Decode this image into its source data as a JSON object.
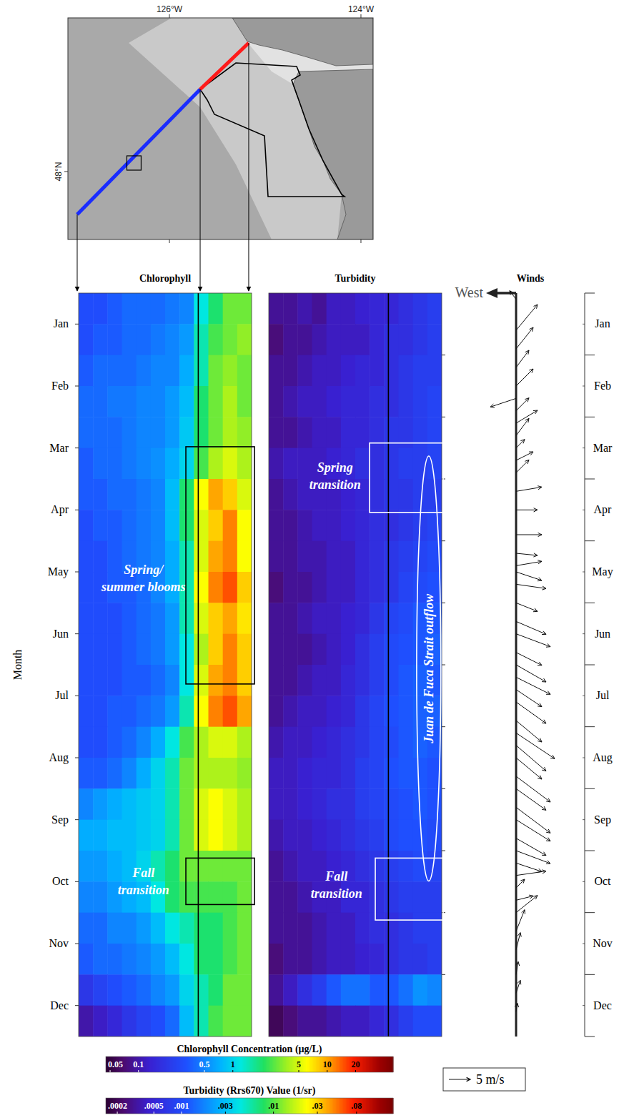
{
  "chart_data": [
    {
      "type": "map",
      "xlim": [
        -127.06,
        -123.873
      ],
      "ylim": [
        47.525,
        49.075
      ],
      "xticks": [
        {
          "value": -126,
          "label": "126°W"
        },
        {
          "value": -124,
          "label": "124°W"
        }
      ],
      "yticks": [
        {
          "value": 48,
          "label": "48°N"
        }
      ],
      "transect": [
        [
          -126.963,
          47.7
        ],
        [
          -125.679,
          48.575
        ],
        [
          -125.172,
          48.9
        ]
      ],
      "colors": [
        "#1a2cff",
        "#ff1a1a"
      ],
      "site_box": [
        -126.37,
        48.06
      ]
    },
    {
      "type": "heatmap",
      "title": "Chlorophyll",
      "ylabel": "Month",
      "log": true,
      "tick_labels": "y",
      "x": [
        0,
        1,
        2,
        3,
        4,
        5,
        6,
        7,
        8,
        9,
        10,
        11
      ],
      "y": [
        0.25,
        0.75,
        1.25,
        1.75,
        2.25,
        2.75,
        3.25,
        3.75,
        4.25,
        4.75,
        5.25,
        5.75,
        6.25,
        6.75,
        7.25,
        7.75,
        8.25,
        8.75,
        9.25,
        9.75,
        10.25,
        10.75,
        11.25,
        11.75
      ],
      "xlim": [
        -0.5,
        11.5
      ],
      "ylim": [
        0,
        12
      ],
      "yticks": [
        {
          "value": 0.5,
          "label": "Jan"
        },
        {
          "value": 1.5,
          "label": "Feb"
        },
        {
          "value": 2.5,
          "label": "Mar"
        },
        {
          "value": 3.5,
          "label": "Apr"
        },
        {
          "value": 4.5,
          "label": "May"
        },
        {
          "value": 5.5,
          "label": "Jun"
        },
        {
          "value": 6.5,
          "label": "Jul"
        },
        {
          "value": 7.5,
          "label": "Aug"
        },
        {
          "value": 8.5,
          "label": "Sep"
        },
        {
          "value": 9.5,
          "label": "Oct"
        },
        {
          "value": 10.5,
          "label": "Nov"
        },
        {
          "value": 11.5,
          "label": "Dec"
        }
      ],
      "reference_line_x": 7.8,
      "z": [
        [
          0.3,
          0.3,
          0.35,
          0.4,
          0.4,
          0.4,
          0.45,
          0.5,
          1.2,
          2,
          3,
          3
        ],
        [
          0.3,
          0.35,
          0.35,
          0.4,
          0.4,
          0.45,
          0.5,
          0.6,
          1.5,
          2.5,
          3,
          3.5
        ],
        [
          0.35,
          0.4,
          0.4,
          0.4,
          0.45,
          0.5,
          0.5,
          0.7,
          1.5,
          3,
          3.5,
          3
        ],
        [
          0.4,
          0.4,
          0.45,
          0.45,
          0.5,
          0.5,
          0.6,
          0.8,
          2,
          3,
          4,
          3
        ],
        [
          0.4,
          0.4,
          0.4,
          0.45,
          0.5,
          0.5,
          0.6,
          0.9,
          2,
          3,
          4,
          3.5
        ],
        [
          0.35,
          0.4,
          0.4,
          0.45,
          0.5,
          0.55,
          0.7,
          1,
          2.5,
          4,
          5,
          4
        ],
        [
          0.35,
          0.35,
          0.4,
          0.4,
          0.45,
          0.5,
          0.8,
          2,
          6,
          10,
          8,
          5
        ],
        [
          0.3,
          0.35,
          0.35,
          0.4,
          0.45,
          0.5,
          0.8,
          2,
          5,
          8,
          12,
          6
        ],
        [
          0.3,
          0.3,
          0.35,
          0.4,
          0.45,
          0.5,
          0.7,
          1.5,
          5,
          10,
          12,
          6
        ],
        [
          0.3,
          0.3,
          0.35,
          0.35,
          0.4,
          0.5,
          0.7,
          1.5,
          6,
          12,
          15,
          8
        ],
        [
          0.3,
          0.3,
          0.3,
          0.35,
          0.4,
          0.45,
          0.6,
          1.5,
          5,
          8,
          10,
          7
        ],
        [
          0.3,
          0.3,
          0.3,
          0.35,
          0.4,
          0.45,
          0.6,
          1.2,
          4,
          8,
          12,
          8
        ],
        [
          0.3,
          0.3,
          0.3,
          0.35,
          0.35,
          0.4,
          0.5,
          1.2,
          5,
          10,
          12,
          8
        ],
        [
          0.3,
          0.3,
          0.35,
          0.35,
          0.4,
          0.45,
          0.6,
          1.5,
          6,
          12,
          15,
          10
        ],
        [
          0.3,
          0.3,
          0.35,
          0.4,
          0.5,
          0.7,
          1.2,
          2.5,
          4,
          5,
          5,
          4
        ],
        [
          0.35,
          0.35,
          0.4,
          0.5,
          0.7,
          1,
          1.5,
          3,
          4,
          4,
          4,
          3.5
        ],
        [
          0.5,
          0.6,
          0.7,
          0.8,
          0.9,
          1,
          1.5,
          3,
          5,
          6,
          5,
          4
        ],
        [
          0.7,
          0.7,
          0.8,
          0.8,
          0.9,
          1,
          1.5,
          3,
          5,
          6,
          5,
          4
        ],
        [
          0.6,
          0.6,
          0.7,
          0.8,
          1,
          1.5,
          2,
          3,
          3,
          3,
          3,
          3
        ],
        [
          0.5,
          0.5,
          0.6,
          0.7,
          0.8,
          1.2,
          2,
          2.5,
          2.5,
          2.5,
          2.5,
          3
        ],
        [
          0.4,
          0.4,
          0.5,
          0.5,
          0.6,
          0.8,
          1.2,
          1.5,
          2,
          2,
          2.5,
          3
        ],
        [
          0.35,
          0.4,
          0.4,
          0.45,
          0.5,
          0.6,
          0.8,
          1.2,
          2,
          2,
          2.5,
          3
        ],
        [
          0.2,
          0.25,
          0.3,
          0.35,
          0.4,
          0.5,
          0.6,
          1,
          1.5,
          2,
          3,
          3
        ],
        [
          0.1,
          0.12,
          0.15,
          0.2,
          0.25,
          0.3,
          0.4,
          0.8,
          1.5,
          2.5,
          3,
          3
        ]
      ],
      "annotations": [
        {
          "text": [
            "Spring/",
            "summer blooms"
          ],
          "at": [
            4.0,
            4.6
          ],
          "box": [
            6.94,
            11.7,
            2.48,
            6.31
          ],
          "color": "black"
        },
        {
          "text": [
            "Fall",
            "transition"
          ],
          "at": [
            4.0,
            9.5
          ],
          "box": [
            6.94,
            11.7,
            9.12,
            9.87
          ],
          "color": "black"
        }
      ],
      "colorbar": {
        "title": "Chlorophyll Concentration (µg/L)",
        "range": [
          0.045,
          50
        ],
        "ticks": [
          0.05,
          0.1,
          0.5,
          1,
          5,
          10,
          20
        ]
      }
    },
    {
      "type": "heatmap",
      "title": "Turbidity",
      "log": true,
      "tick_labels": false,
      "x": [
        0,
        1,
        2,
        3,
        4,
        5,
        6,
        7,
        8,
        9,
        10,
        11
      ],
      "y": [
        0.25,
        0.75,
        1.25,
        1.75,
        2.25,
        2.75,
        3.25,
        3.75,
        4.25,
        4.75,
        5.25,
        5.75,
        6.25,
        6.75,
        7.25,
        7.75,
        8.25,
        8.75,
        9.25,
        9.75,
        10.25,
        10.75,
        11.25,
        11.75
      ],
      "xlim": [
        -0.5,
        11.5
      ],
      "ylim": [
        0,
        12
      ],
      "yticks": [
        1,
        2,
        3,
        4,
        5,
        6,
        7,
        8,
        9,
        10,
        11
      ],
      "reference_line_x": 7.8,
      "z": [
        [
          0.0003,
          0.0003,
          0.00035,
          0.0003,
          0.0004,
          0.0004,
          0.00045,
          0.0005,
          0.0005,
          0.0006,
          0.0007,
          0.0008
        ],
        [
          0.00025,
          0.0003,
          0.0003,
          0.00035,
          0.0004,
          0.0004,
          0.0004,
          0.0005,
          0.0006,
          0.0006,
          0.0007,
          0.0008
        ],
        [
          0.0003,
          0.0003,
          0.00035,
          0.0004,
          0.0004,
          0.00045,
          0.0005,
          0.0005,
          0.0006,
          0.0007,
          0.0008,
          0.0008
        ],
        [
          0.0003,
          0.00035,
          0.0004,
          0.0004,
          0.00045,
          0.0005,
          0.0005,
          0.0006,
          0.0006,
          0.0007,
          0.0008,
          0.0009
        ],
        [
          0.0003,
          0.0003,
          0.00035,
          0.0004,
          0.0004,
          0.0005,
          0.0005,
          0.0006,
          0.0007,
          0.0007,
          0.0008,
          0.0009
        ],
        [
          0.00035,
          0.0004,
          0.0004,
          0.0004,
          0.00045,
          0.0005,
          0.0006,
          0.0006,
          0.0007,
          0.0008,
          0.0008,
          0.0009
        ],
        [
          0.0003,
          0.00035,
          0.0004,
          0.0004,
          0.0004,
          0.00045,
          0.0005,
          0.0006,
          0.0007,
          0.0007,
          0.0008,
          0.0008
        ],
        [
          0.0003,
          0.0003,
          0.00035,
          0.0004,
          0.0004,
          0.00045,
          0.0005,
          0.0006,
          0.0006,
          0.0007,
          0.0008,
          0.0009
        ],
        [
          0.0003,
          0.0003,
          0.00035,
          0.00035,
          0.0004,
          0.0004,
          0.0005,
          0.0006,
          0.0007,
          0.0008,
          0.0009,
          0.001
        ],
        [
          0.00025,
          0.0003,
          0.0003,
          0.00035,
          0.0004,
          0.0004,
          0.0005,
          0.0006,
          0.0007,
          0.0009,
          0.001,
          0.0011
        ],
        [
          0.0003,
          0.0003,
          0.00035,
          0.0004,
          0.0004,
          0.00045,
          0.0005,
          0.0007,
          0.0009,
          0.001,
          0.0012,
          0.0012
        ],
        [
          0.0003,
          0.0003,
          0.0003,
          0.00035,
          0.0004,
          0.00045,
          0.0006,
          0.0008,
          0.001,
          0.0011,
          0.0012,
          0.0013
        ],
        [
          0.0003,
          0.0003,
          0.00035,
          0.0004,
          0.0004,
          0.0005,
          0.0006,
          0.0008,
          0.001,
          0.0012,
          0.0013,
          0.0012
        ],
        [
          0.0003,
          0.00035,
          0.0004,
          0.0004,
          0.00045,
          0.0005,
          0.0007,
          0.0009,
          0.0011,
          0.0012,
          0.0013,
          0.0013
        ],
        [
          0.00035,
          0.0004,
          0.0004,
          0.00045,
          0.0005,
          0.0006,
          0.0007,
          0.0009,
          0.001,
          0.0012,
          0.0013,
          0.0012
        ],
        [
          0.0004,
          0.0004,
          0.00045,
          0.0005,
          0.0005,
          0.0006,
          0.0008,
          0.0009,
          0.0011,
          0.0012,
          0.0012,
          0.0011
        ],
        [
          0.0004,
          0.0004,
          0.00045,
          0.0005,
          0.0006,
          0.0006,
          0.0008,
          0.0009,
          0.001,
          0.0011,
          0.0012,
          0.0011
        ],
        [
          0.00035,
          0.0004,
          0.0004,
          0.00045,
          0.0005,
          0.0006,
          0.0007,
          0.0008,
          0.001,
          0.0011,
          0.0011,
          0.001
        ],
        [
          0.0003,
          0.00035,
          0.0004,
          0.0004,
          0.00045,
          0.0005,
          0.0006,
          0.0007,
          0.0008,
          0.0009,
          0.001,
          0.0009
        ],
        [
          0.0003,
          0.0003,
          0.00035,
          0.0004,
          0.0004,
          0.0005,
          0.0005,
          0.0006,
          0.0007,
          0.0008,
          0.0008,
          0.0008
        ],
        [
          0.0003,
          0.0003,
          0.0003,
          0.00035,
          0.0004,
          0.0004,
          0.0005,
          0.0006,
          0.0006,
          0.0007,
          0.0008,
          0.0008
        ],
        [
          0.00025,
          0.0003,
          0.0003,
          0.00035,
          0.0004,
          0.0004,
          0.00045,
          0.0005,
          0.0006,
          0.0007,
          0.0007,
          0.0008
        ],
        [
          0.0003,
          0.0004,
          0.0006,
          0.0008,
          0.0012,
          0.0015,
          0.0015,
          0.0012,
          0.0012,
          0.0015,
          0.002,
          0.0018
        ],
        [
          0.0002,
          0.00025,
          0.0003,
          0.0003,
          0.00035,
          0.0004,
          0.0004,
          0.0005,
          0.0006,
          0.0008,
          0.001,
          0.001
        ]
      ],
      "annotations": [
        {
          "text": [
            "Spring",
            "transition"
          ],
          "at": [
            4.1,
            2.95
          ],
          "box": [
            6.49,
            11.6,
            2.42,
            3.54
          ],
          "color": "white"
        },
        {
          "text": [
            "Fall",
            "transition"
          ],
          "at": [
            4.2,
            9.55
          ],
          "box": [
            6.89,
            11.6,
            9.12,
            10.12
          ],
          "color": "white"
        },
        {
          "text": [
            "Juan de Fuca Strait outflow"
          ],
          "at": [
            10.6,
            6.06
          ],
          "ellipse": [
            10.6,
            6.06,
            0.84,
            3.43
          ],
          "color": "white"
        }
      ],
      "colorbar": {
        "title": "Turbidity (Rrs670) Value (1/sr)",
        "range": [
          0.00015,
          0.2
        ],
        "ticks": [
          {
            "value": 0.0002,
            "label": ".0002"
          },
          {
            "value": 0.0005,
            "label": ".0005"
          },
          {
            "value": 0.001,
            "label": ".001"
          },
          {
            "value": 0.003,
            "label": ".003"
          },
          {
            "value": 0.01,
            "label": ".01"
          },
          {
            "value": 0.03,
            "label": ".03"
          },
          {
            "value": 0.08,
            "label": ".08"
          }
        ]
      }
    },
    {
      "type": "quiver",
      "title": "Winds",
      "direction_label": "West",
      "tick_labels": "y",
      "ylim": [
        0,
        12
      ],
      "yticks": [
        {
          "value": 0.5,
          "label": "Jan"
        },
        {
          "value": 1.5,
          "label": "Feb"
        },
        {
          "value": 2.5,
          "label": "Mar"
        },
        {
          "value": 3.5,
          "label": "Apr"
        },
        {
          "value": 4.5,
          "label": "May"
        },
        {
          "value": 5.5,
          "label": "Jun"
        },
        {
          "value": 6.5,
          "label": "Jul"
        },
        {
          "value": 7.5,
          "label": "Aug"
        },
        {
          "value": 8.5,
          "label": "Sep"
        },
        {
          "value": 9.5,
          "label": "Oct"
        },
        {
          "value": 10.5,
          "label": "Nov"
        },
        {
          "value": 11.5,
          "label": "Dec"
        }
      ],
      "time": [
        0.1,
        0.6,
        0.9,
        1.2,
        1.5,
        1.7,
        1.9,
        2.1,
        2.3,
        2.5,
        2.7,
        2.9,
        3.2,
        3.5,
        3.9,
        4.2,
        4.4,
        4.5,
        4.7,
        5.0,
        5.3,
        5.5,
        5.8,
        6.0,
        6.2,
        6.4,
        6.6,
        6.9,
        7.1,
        7.3,
        7.5,
        7.8,
        8.0,
        8.3,
        8.5,
        8.8,
        9.0,
        9.2,
        9.4,
        9.6,
        9.8,
        10.0,
        10.3,
        10.6,
        11.0,
        11.3,
        11.6
      ],
      "u": [
        -1.5,
        5,
        4,
        3,
        4,
        -6,
        3,
        5,
        3,
        2,
        4,
        3,
        6,
        5,
        6,
        5,
        6,
        6,
        7,
        5,
        7,
        8,
        6,
        7,
        8,
        6,
        7,
        6,
        9,
        7,
        6,
        8,
        7,
        8,
        8,
        7,
        8,
        6,
        7,
        2,
        4,
        5,
        2,
        1,
        0.5,
        1,
        0.3
      ],
      "v": [
        2,
        6,
        5,
        4,
        4,
        -2,
        3,
        3,
        4,
        2,
        2,
        3,
        1,
        0,
        0,
        -0.5,
        1,
        -2,
        -1,
        -2,
        -3,
        -3,
        -3,
        -4,
        -4,
        -4,
        -5,
        -5,
        -6,
        -6,
        -5,
        -6,
        -5,
        -6,
        -5,
        -4,
        -3,
        -2,
        1,
        2,
        1,
        4,
        5,
        4,
        3,
        3,
        2
      ],
      "scale": {
        "value": 5,
        "label": "5 m/s"
      }
    }
  ]
}
